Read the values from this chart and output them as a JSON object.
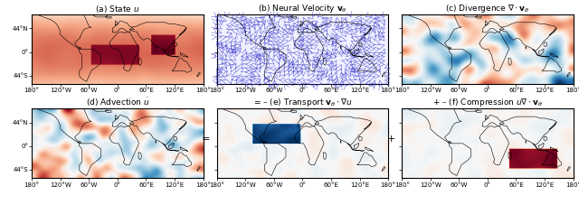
{
  "titles": [
    "(a) State $u$",
    "(b) Neural Velocity $\\mathbf{v}_{\\theta}$",
    "(c) Divergence $\\nabla \\cdot \\mathbf{v}_{\\theta}$",
    "(d) Advection $\\dot{u}$",
    "= – (e) Transport $\\mathbf{v}_{\\theta} \\cdot \\nabla u$",
    "+ – (f) Compression $u\\nabla \\cdot \\mathbf{v}_{\\theta}$"
  ],
  "xtick_labels": [
    "180°",
    "120°W",
    "60°W",
    "0°",
    "60°E",
    "120°E",
    "180°"
  ],
  "ytick_labels": [
    "44°N",
    "0°",
    "44°S"
  ],
  "lon_range": [
    -180,
    180
  ],
  "lat_range": [
    -60,
    70
  ],
  "figsize": [
    6.4,
    2.27
  ],
  "dpi": 100,
  "colormap_rb": "RdBu_r",
  "background_color": "#ffffff",
  "map_edge_color": "#000000",
  "quiver_color_main": "#3333cc",
  "quiver_color_accent": "#cc2222",
  "title_fontsize": 6.5,
  "tick_fontsize": 5.0,
  "seed": 42
}
